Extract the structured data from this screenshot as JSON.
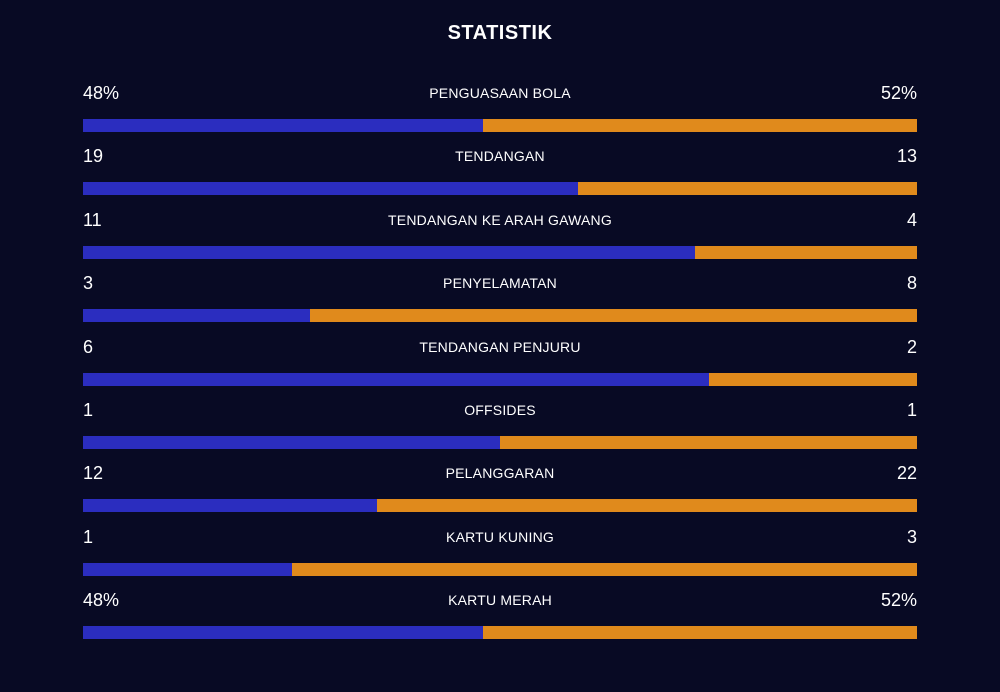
{
  "title": "STATISTIK",
  "colors": {
    "background": "#080a24",
    "home_bar": "#2b2dbf",
    "away_bar": "#e08a1c"
  },
  "stats": [
    {
      "label": "PENGUASAAN BOLA",
      "left": "48%",
      "right": "52%",
      "left_share": 0.48
    },
    {
      "label": "TENDANGAN",
      "left": "19",
      "right": "13",
      "left_share": 0.5938
    },
    {
      "label": "TENDANGAN KE ARAH GAWANG",
      "left": "11",
      "right": "4",
      "left_share": 0.7333
    },
    {
      "label": "PENYELAMATAN",
      "left": "3",
      "right": "8",
      "left_share": 0.2727
    },
    {
      "label": "TENDANGAN PENJURU",
      "left": "6",
      "right": "2",
      "left_share": 0.75
    },
    {
      "label": "OFFSIDES",
      "left": "1",
      "right": "1",
      "left_share": 0.5
    },
    {
      "label": "PELANGGARAN",
      "left": "12",
      "right": "22",
      "left_share": 0.3529
    },
    {
      "label": "KARTU KUNING",
      "left": "1",
      "right": "3",
      "left_share": 0.25
    },
    {
      "label": "KARTU MERAH",
      "left": "48%",
      "right": "52%",
      "left_share": 0.48
    }
  ]
}
